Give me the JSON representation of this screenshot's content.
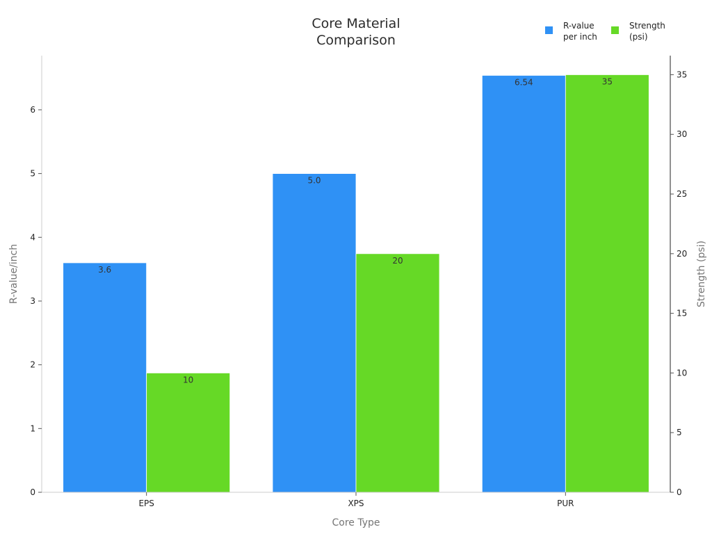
{
  "chart_data": {
    "type": "bar",
    "title": [
      "Core Material",
      "Comparison"
    ],
    "xlabel": "Core Type",
    "ylabel_left": "R-value/inch",
    "ylabel_right": "Strength (psi)",
    "categories": [
      "EPS",
      "XPS",
      "PUR"
    ],
    "series": [
      {
        "name": [
          "R-value",
          "per inch"
        ],
        "axis": "left",
        "color": "#2f91f5",
        "values": [
          3.6,
          5.0,
          6.54
        ],
        "labels": [
          "3.6",
          "5.0",
          "6.54"
        ]
      },
      {
        "name": [
          "Strength",
          "(psi)"
        ],
        "axis": "right",
        "color": "#66d926",
        "values": [
          10,
          20,
          35
        ],
        "labels": [
          "10",
          "20",
          "35"
        ]
      }
    ],
    "y_left": {
      "range": [
        0,
        6.85
      ],
      "ticks": [
        0,
        1,
        2,
        3,
        4,
        5,
        6
      ],
      "tick_labels": [
        "0",
        "1",
        "2",
        "3",
        "4",
        "5",
        "6"
      ]
    },
    "y_right": {
      "range": [
        0,
        36.6
      ],
      "ticks": [
        0,
        5,
        10,
        15,
        20,
        25,
        30,
        35
      ],
      "tick_labels": [
        "0",
        "5",
        "10",
        "15",
        "20",
        "25",
        "30",
        "35"
      ]
    },
    "legend_position": "top-right",
    "grid": false
  }
}
